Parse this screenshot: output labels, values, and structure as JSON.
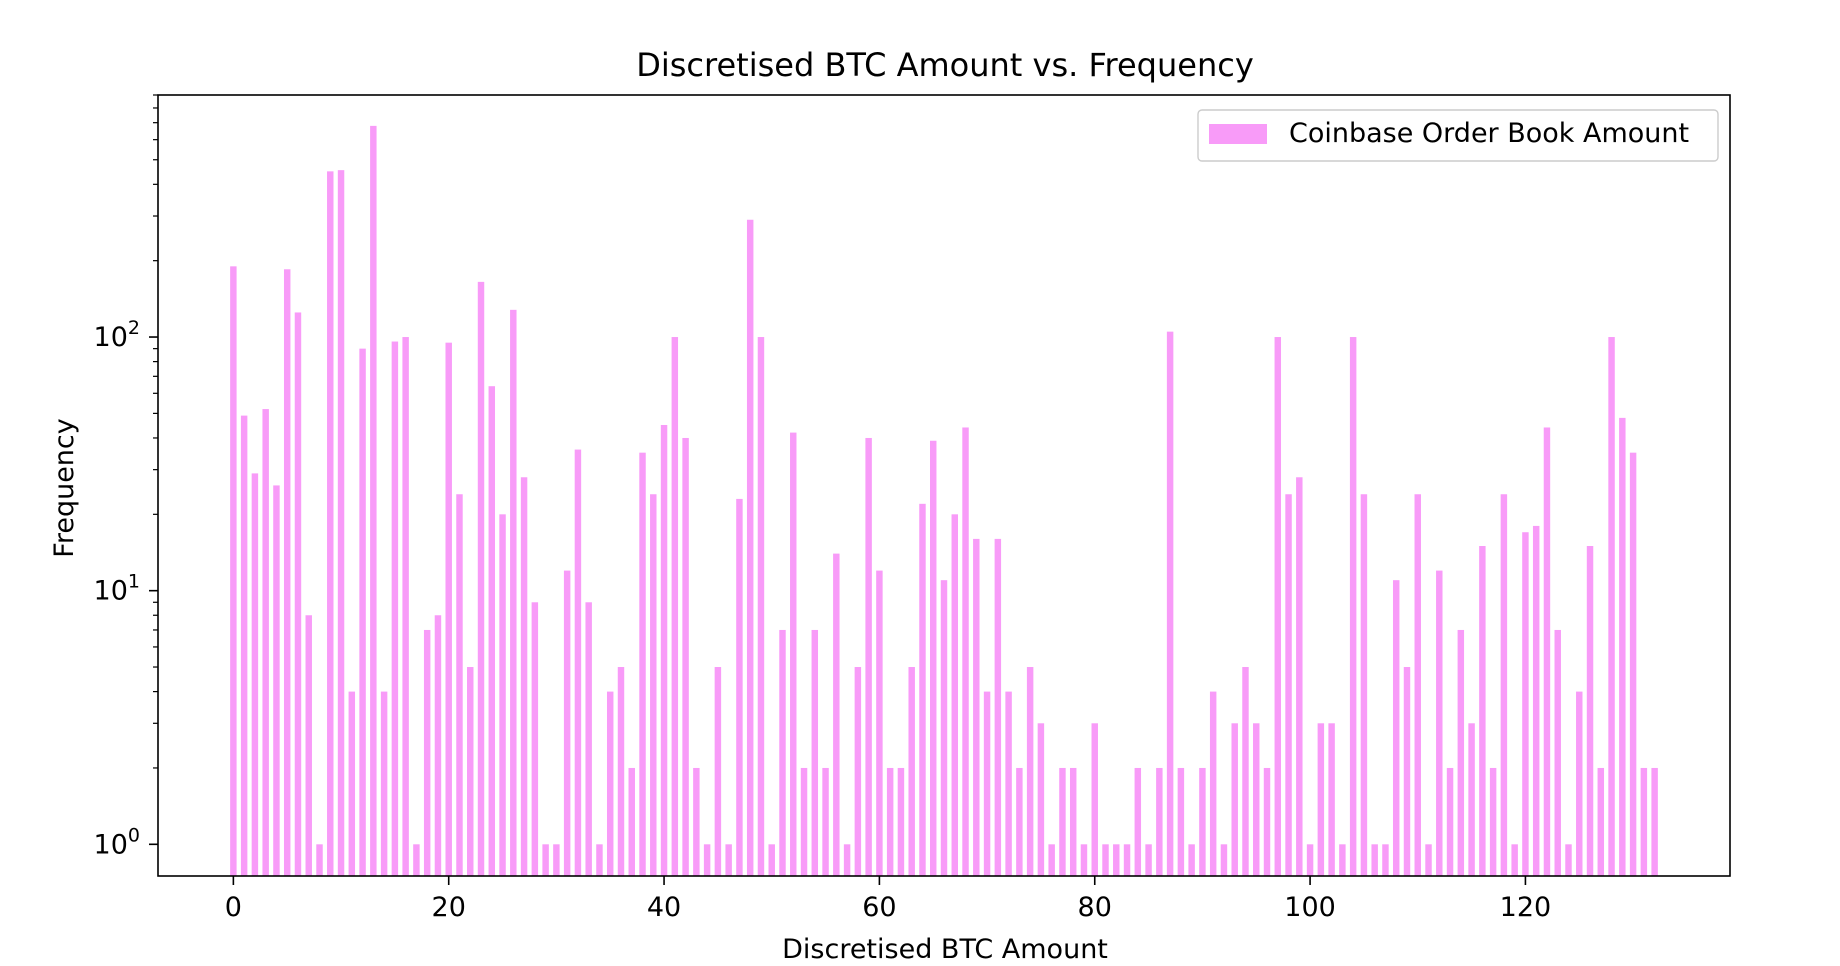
{
  "chart_data": {
    "type": "bar",
    "title": "Discretised BTC Amount vs. Frequency",
    "xlabel": "Discretised BTC Amount",
    "ylabel": "Frequency",
    "yscale": "log",
    "xlim": [
      -7,
      139
    ],
    "ylim": [
      0.75,
      900
    ],
    "xticks": [
      0,
      20,
      40,
      60,
      80,
      100,
      120
    ],
    "yticks": [
      {
        "value": 1,
        "base": "10",
        "exp": "0"
      },
      {
        "value": 10,
        "base": "10",
        "exp": "1"
      },
      {
        "value": 100,
        "base": "10",
        "exp": "2"
      }
    ],
    "grid": false,
    "legend_position": "top-right",
    "series": [
      {
        "name": "Coinbase Order Book Amount",
        "color": "#f89bf8",
        "x": [
          0,
          1,
          2,
          3,
          4,
          5,
          6,
          7,
          8,
          9,
          10,
          11,
          12,
          13,
          14,
          15,
          16,
          17,
          18,
          19,
          20,
          21,
          22,
          23,
          24,
          25,
          26,
          27,
          28,
          29,
          30,
          31,
          32,
          33,
          34,
          35,
          36,
          37,
          38,
          39,
          40,
          41,
          42,
          43,
          44,
          45,
          46,
          47,
          48,
          49,
          50,
          51,
          52,
          53,
          54,
          55,
          56,
          57,
          58,
          59,
          60,
          61,
          62,
          63,
          64,
          65,
          66,
          67,
          68,
          69,
          70,
          71,
          72,
          73,
          74,
          75,
          76,
          77,
          78,
          79,
          80,
          81,
          82,
          83,
          84,
          85,
          86,
          87,
          88,
          89,
          90,
          91,
          92,
          93,
          94,
          95,
          96,
          97,
          98,
          99,
          100,
          101,
          102,
          103,
          104,
          105,
          106,
          107,
          108,
          109,
          110,
          111,
          112,
          113,
          114,
          115,
          116,
          117,
          118,
          119,
          120,
          121,
          122,
          123,
          124,
          125,
          126,
          127,
          128,
          129,
          130,
          131,
          132
        ],
        "values": [
          190,
          49,
          29,
          52,
          26,
          185,
          125,
          8,
          1,
          450,
          455,
          4,
          90,
          680,
          4,
          96,
          100,
          1,
          7,
          8,
          95,
          24,
          5,
          165,
          64,
          20,
          128,
          28,
          9,
          1,
          1,
          12,
          36,
          9,
          1,
          4,
          5,
          2,
          35,
          24,
          45,
          100,
          40,
          2,
          1,
          5,
          1,
          23,
          290,
          100,
          1,
          7,
          42,
          2,
          7,
          2,
          14,
          1,
          5,
          40,
          12,
          2,
          2,
          5,
          22,
          39,
          11,
          20,
          44,
          16,
          4,
          16,
          4,
          2,
          5,
          3,
          1,
          2,
          2,
          1,
          3,
          1,
          1,
          1,
          2,
          1,
          2,
          105,
          2,
          1,
          2,
          4,
          1,
          3,
          5,
          3,
          2,
          100,
          24,
          28,
          1,
          3,
          3,
          1,
          100,
          24,
          1,
          1,
          11,
          5,
          24,
          1,
          12,
          2,
          7,
          3,
          15,
          2,
          24,
          1,
          17,
          18,
          44,
          7,
          1,
          4,
          15,
          2,
          100,
          48,
          35,
          2,
          2
        ]
      }
    ]
  }
}
